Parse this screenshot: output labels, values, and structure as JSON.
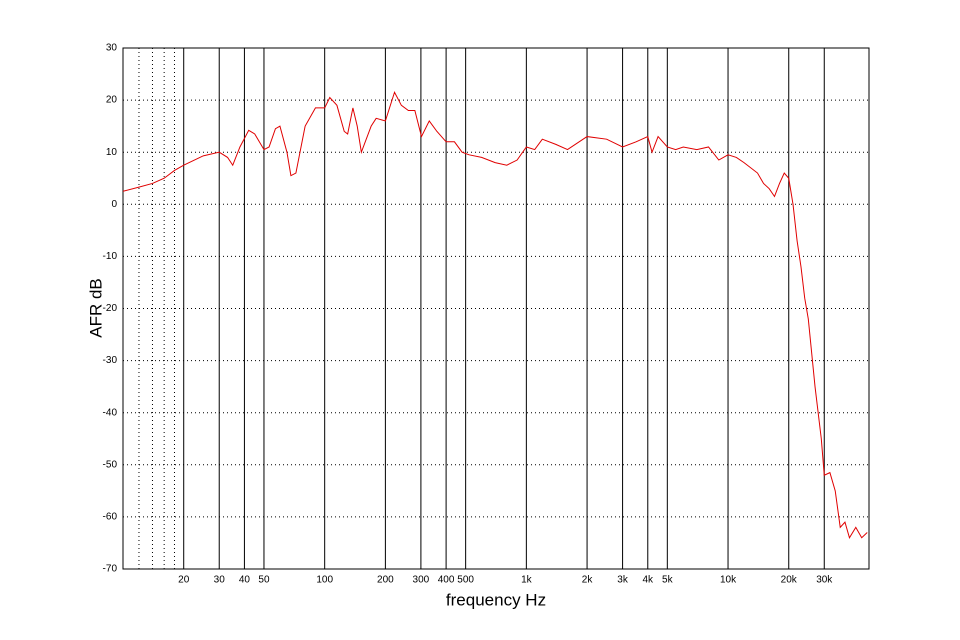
{
  "chart_data": {
    "type": "line",
    "x_label": "frequency   Hz",
    "y_label": "AFR dB",
    "xscale": "log",
    "grid": true,
    "color": "#e00000",
    "xlim": [
      10,
      50000
    ],
    "ylim": [
      -70,
      30
    ],
    "yticks": [
      -70,
      -60,
      -50,
      -40,
      -30,
      -20,
      -10,
      0,
      10,
      20,
      30
    ],
    "xticks": [
      20,
      30,
      40,
      50,
      100,
      200,
      300,
      400,
      500,
      {
        "value": 1000,
        "label": "1k"
      },
      {
        "value": 2000,
        "label": "2k"
      },
      {
        "value": 3000,
        "label": "3k"
      },
      {
        "value": 4000,
        "label": "4k"
      },
      {
        "value": 5000,
        "label": "5k"
      },
      {
        "value": 10000,
        "label": "10k"
      },
      {
        "value": 20000,
        "label": "20k"
      },
      {
        "value": 30000,
        "label": "30k"
      }
    ],
    "minor_xgrid": [
      12,
      14,
      16,
      18
    ],
    "x": [
      10,
      12,
      14,
      16,
      18,
      20,
      25,
      30,
      33,
      35,
      38,
      42,
      45,
      50,
      53,
      57,
      60,
      65,
      68,
      72,
      80,
      90,
      100,
      106,
      115,
      125,
      130,
      138,
      145,
      152,
      170,
      180,
      200,
      222,
      240,
      260,
      280,
      302,
      330,
      360,
      400,
      440,
      480,
      520,
      600,
      700,
      800,
      900,
      1000,
      1100,
      1200,
      1400,
      1600,
      2000,
      2500,
      3000,
      3500,
      4000,
      4200,
      4500,
      5000,
      5500,
      6000,
      7000,
      8000,
      9000,
      10000,
      11000,
      12000,
      14000,
      15000,
      16000,
      17000,
      18000,
      19000,
      20000,
      21000,
      22000,
      23000,
      24000,
      25000,
      27000,
      29000,
      30000,
      32000,
      34000,
      36000,
      38000,
      40000,
      43000,
      46000,
      49000
    ],
    "values": [
      2.5,
      3.3,
      4,
      5,
      6.5,
      7.5,
      9.3,
      10,
      9,
      7.5,
      11,
      14.2,
      13.5,
      10.5,
      11,
      14.5,
      15,
      10,
      5.5,
      6,
      15,
      18.5,
      18.5,
      20.5,
      19,
      14,
      13.5,
      18.5,
      15,
      10,
      15,
      16.5,
      16,
      21.5,
      19,
      18,
      18,
      13,
      16,
      14,
      12,
      12,
      10,
      9.5,
      9,
      8,
      7.5,
      8.5,
      11,
      10.5,
      12.5,
      11.5,
      10.5,
      13,
      12.5,
      11,
      12,
      13,
      10,
      13,
      11,
      10.5,
      11,
      10.5,
      11,
      8.5,
      9.5,
      9,
      8,
      6,
      4,
      3,
      1.5,
      4,
      6,
      5,
      0,
      -7,
      -12,
      -18,
      -22,
      -35,
      -45,
      -52,
      -51.5,
      -55,
      -62,
      -61,
      -64,
      -62,
      -64,
      -63
    ]
  }
}
